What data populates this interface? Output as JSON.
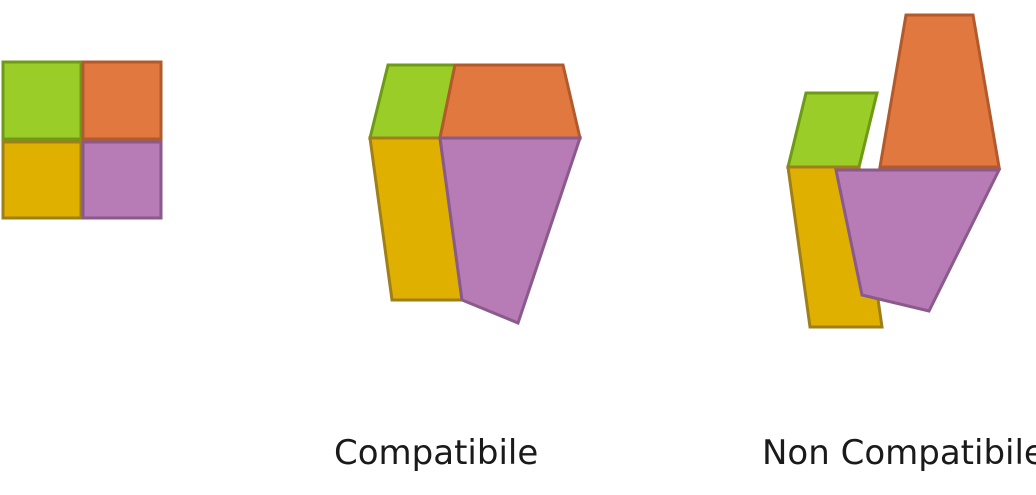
{
  "colors": {
    "green": "#9ACD28",
    "green_stroke": "#6F9A17",
    "orange": "#E07840",
    "orange_stroke": "#B35A2C",
    "yellow": "#DFB000",
    "yellow_stroke": "#9F7F1A",
    "purple": "#B77BB5",
    "purple_stroke": "#8A5A8D"
  },
  "figures": [
    {
      "name": "original-grid",
      "caption": ""
    },
    {
      "name": "compatible-deformation",
      "caption": "Compatibile"
    },
    {
      "name": "non-compatible-deformation",
      "caption": "Non Compatibile"
    }
  ]
}
